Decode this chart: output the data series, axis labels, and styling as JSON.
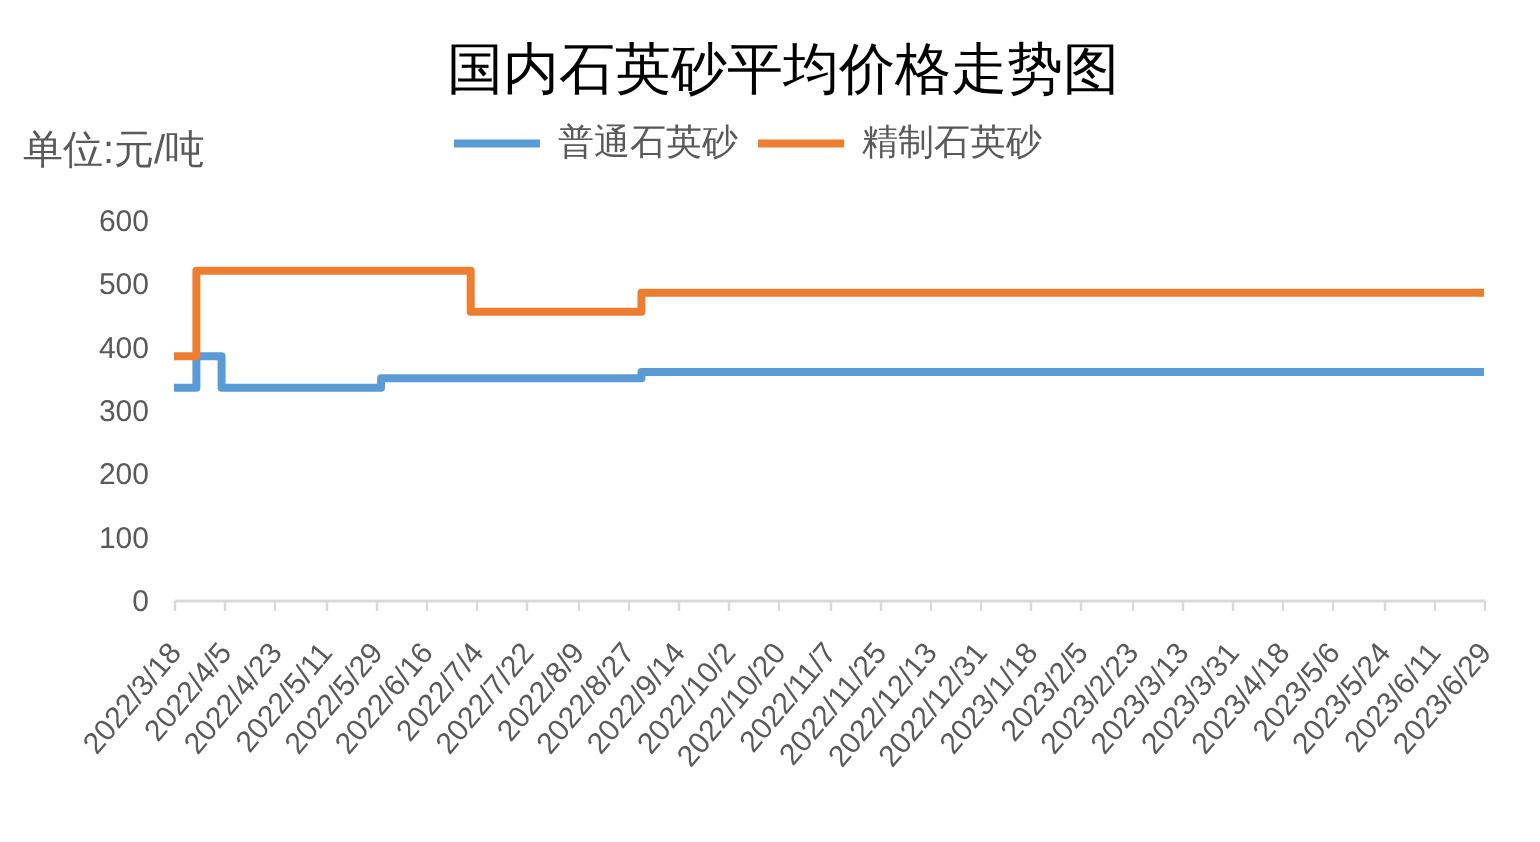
{
  "chart_data": {
    "type": "step",
    "title": "国内石英砂平均价格走势图",
    "ylabel": "单位:元/吨",
    "series": [
      {
        "name": "普通石英砂",
        "color": "#5b9bd5",
        "x": [
          "2022-03-18",
          "2022-03-26",
          "2022-04-04",
          "2022-05-31",
          "2022-09-01",
          "2023-06-29"
        ],
        "values": [
          335,
          385,
          335,
          350,
          360,
          360
        ]
      },
      {
        "name": "精制石英砂",
        "color": "#ed7d31",
        "x": [
          "2022-03-18",
          "2022-03-26",
          "2022-07-02",
          "2022-09-01",
          "2023-06-29"
        ],
        "values": [
          385,
          520,
          455,
          485,
          485
        ]
      }
    ],
    "xlim": [
      "2022-03-18",
      "2023-06-29"
    ],
    "xticks": [
      {
        "value": "2022-03-18",
        "label": "2022/3/18"
      },
      {
        "value": "2022-04-05",
        "label": "2022/4/5"
      },
      {
        "value": "2022-04-23",
        "label": "2022/4/23"
      },
      {
        "value": "2022-05-11",
        "label": "2022/5/11"
      },
      {
        "value": "2022-05-29",
        "label": "2022/5/29"
      },
      {
        "value": "2022-06-16",
        "label": "2022/6/16"
      },
      {
        "value": "2022-07-04",
        "label": "2022/7/4"
      },
      {
        "value": "2022-07-22",
        "label": "2022/7/22"
      },
      {
        "value": "2022-08-09",
        "label": "2022/8/9"
      },
      {
        "value": "2022-08-27",
        "label": "2022/8/27"
      },
      {
        "value": "2022-09-14",
        "label": "2022/9/14"
      },
      {
        "value": "2022-10-02",
        "label": "2022/10/2"
      },
      {
        "value": "2022-10-20",
        "label": "2022/10/20"
      },
      {
        "value": "2022-11-07",
        "label": "2022/11/7"
      },
      {
        "value": "2022-11-25",
        "label": "2022/11/25"
      },
      {
        "value": "2022-12-13",
        "label": "2022/12/13"
      },
      {
        "value": "2022-12-31",
        "label": "2022/12/31"
      },
      {
        "value": "2023-01-18",
        "label": "2023/1/18"
      },
      {
        "value": "2023-02-05",
        "label": "2023/2/5"
      },
      {
        "value": "2023-02-23",
        "label": "2023/2/23"
      },
      {
        "value": "2023-03-13",
        "label": "2023/3/13"
      },
      {
        "value": "2023-03-31",
        "label": "2023/3/31"
      },
      {
        "value": "2023-04-18",
        "label": "2023/4/18"
      },
      {
        "value": "2023-05-06",
        "label": "2023/5/6"
      },
      {
        "value": "2023-05-24",
        "label": "2023/5/24"
      },
      {
        "value": "2023-06-11",
        "label": "2023/6/11"
      },
      {
        "value": "2023-06-29",
        "label": "2023/6/29"
      }
    ],
    "ylim": [
      0,
      600
    ],
    "yticks": [
      0,
      100,
      200,
      300,
      400,
      500,
      600
    ],
    "grid": false,
    "legend": "top",
    "line_style": "solid"
  }
}
